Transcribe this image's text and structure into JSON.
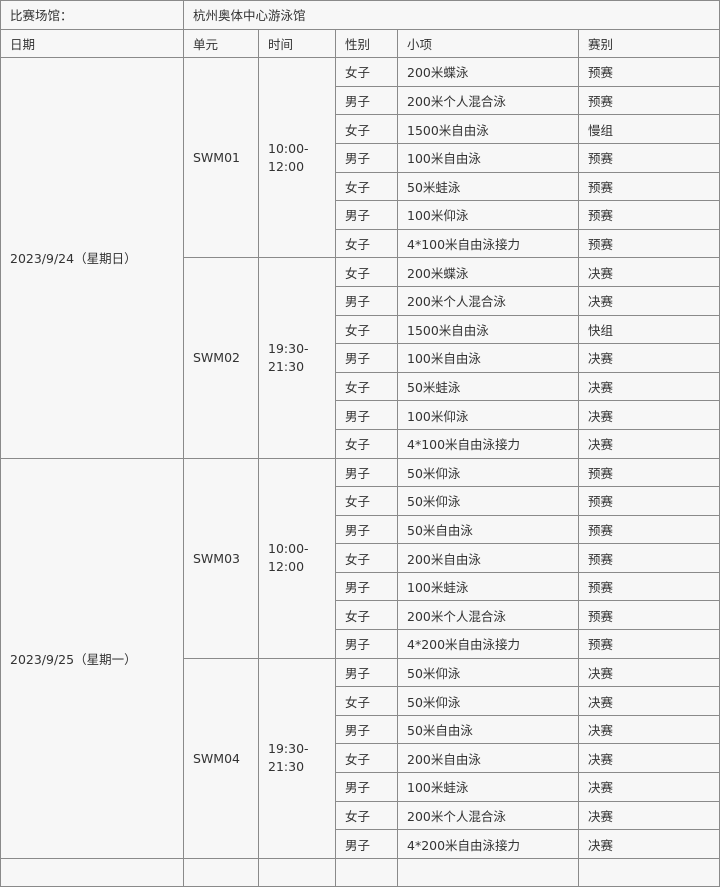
{
  "venue": {
    "label": "比赛场馆：",
    "name": "杭州奥体中心游泳馆"
  },
  "headers": [
    "日期",
    "单元",
    "时间",
    "性别",
    "小项",
    "赛别"
  ],
  "days": [
    {
      "date": "2023/9/24（星期日）",
      "units": [
        {
          "unit": "SWM01",
          "time": "10:00-12:00",
          "events": [
            {
              "gender": "女子",
              "item": "200米蝶泳",
              "stage": "预赛"
            },
            {
              "gender": "男子",
              "item": "200米个人混合泳",
              "stage": "预赛"
            },
            {
              "gender": "女子",
              "item": "1500米自由泳",
              "stage": "慢组"
            },
            {
              "gender": "男子",
              "item": "100米自由泳",
              "stage": "预赛"
            },
            {
              "gender": "女子",
              "item": "50米蛙泳",
              "stage": "预赛"
            },
            {
              "gender": "男子",
              "item": "100米仰泳",
              "stage": "预赛"
            },
            {
              "gender": "女子",
              "item": "4*100米自由泳接力",
              "stage": "预赛"
            }
          ]
        },
        {
          "unit": "SWM02",
          "time": "19:30-21:30",
          "events": [
            {
              "gender": "女子",
              "item": "200米蝶泳",
              "stage": "决赛"
            },
            {
              "gender": "男子",
              "item": "200米个人混合泳",
              "stage": "决赛"
            },
            {
              "gender": "女子",
              "item": "1500米自由泳",
              "stage": "快组"
            },
            {
              "gender": "男子",
              "item": "100米自由泳",
              "stage": "决赛"
            },
            {
              "gender": "女子",
              "item": "50米蛙泳",
              "stage": "决赛"
            },
            {
              "gender": "男子",
              "item": "100米仰泳",
              "stage": "决赛"
            },
            {
              "gender": "女子",
              "item": "4*100米自由泳接力",
              "stage": "决赛"
            }
          ]
        }
      ]
    },
    {
      "date": "2023/9/25（星期一）",
      "units": [
        {
          "unit": "SWM03",
          "time": "10:00-12:00",
          "events": [
            {
              "gender": "男子",
              "item": "50米仰泳",
              "stage": "预赛"
            },
            {
              "gender": "女子",
              "item": "50米仰泳",
              "stage": "预赛"
            },
            {
              "gender": "男子",
              "item": "50米自由泳",
              "stage": "预赛"
            },
            {
              "gender": "女子",
              "item": "200米自由泳",
              "stage": "预赛"
            },
            {
              "gender": "男子",
              "item": "100米蛙泳",
              "stage": "预赛"
            },
            {
              "gender": "女子",
              "item": "200米个人混合泳",
              "stage": "预赛"
            },
            {
              "gender": "男子",
              "item": "4*200米自由泳接力",
              "stage": "预赛"
            }
          ]
        },
        {
          "unit": "SWM04",
          "time": "19:30-21:30",
          "events": [
            {
              "gender": "男子",
              "item": "50米仰泳",
              "stage": "决赛"
            },
            {
              "gender": "女子",
              "item": "50米仰泳",
              "stage": "决赛"
            },
            {
              "gender": "男子",
              "item": "50米自由泳",
              "stage": "决赛"
            },
            {
              "gender": "女子",
              "item": "200米自由泳",
              "stage": "决赛"
            },
            {
              "gender": "男子",
              "item": "100米蛙泳",
              "stage": "决赛"
            },
            {
              "gender": "女子",
              "item": "200米个人混合泳",
              "stage": "决赛"
            },
            {
              "gender": "男子",
              "item": "4*200米自由泳接力",
              "stage": "决赛"
            }
          ]
        }
      ]
    }
  ]
}
